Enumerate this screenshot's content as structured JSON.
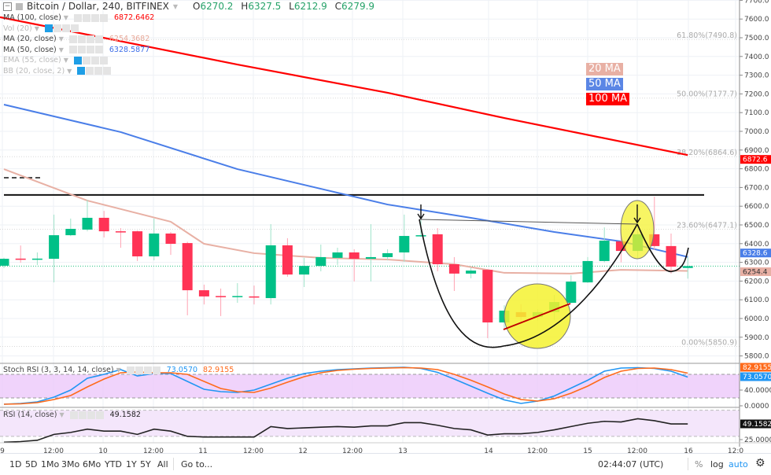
{
  "header": {
    "symbol_title": "Bitcoin / Dollar, 240, BITFINEX",
    "ohlc": {
      "o_label": "O",
      "o": "6270.2",
      "h_label": "H",
      "h": "6327.5",
      "l_label": "L",
      "l": "6212.9",
      "c_label": "C",
      "c": "6279.9"
    }
  },
  "indicators": [
    {
      "name": "MA (100, close)",
      "value": "6872.6462",
      "color": "#ff0000",
      "visible": true
    },
    {
      "name": "Vol (20)",
      "value": "",
      "color": "#bbbbbb",
      "visible": false
    },
    {
      "name": "MA (20, close)",
      "value": "6254.3682",
      "color": "#e8a898",
      "visible": true
    },
    {
      "name": "MA (50, close)",
      "value": "6328.5877",
      "color": "#3d6ee8",
      "visible": true
    },
    {
      "name": "EMA (55, close)",
      "value": "",
      "color": "#bbbbbb",
      "visible": false
    },
    {
      "name": "BB (20, close, 2)",
      "value": "",
      "color": "#bbbbbb",
      "visible": false
    }
  ],
  "annotations": {
    "ma20": {
      "text": "20 MA",
      "color": "#e8b0a4"
    },
    "ma50": {
      "text": "50 MA",
      "color": "#5b86e5"
    },
    "ma100": {
      "text": "100 MA",
      "color": "#ff0000"
    }
  },
  "stoch_legend": {
    "name": "Stoch RSI (3, 3, 14, 14, close)",
    "k": "73.0570",
    "d": "82.9155"
  },
  "rsi_legend": {
    "name": "RSI (14, close)",
    "value": "49.1582"
  },
  "toolbar": {
    "ranges": [
      "1D",
      "5D",
      "1Mo",
      "3Mo",
      "6Mo",
      "YTD",
      "1Y",
      "5Y",
      "All"
    ],
    "goto": "Go to...",
    "clock": "02:44:07 (UTC)",
    "percent": "%",
    "log": "log",
    "auto": "auto"
  },
  "colors": {
    "up": "#00c087",
    "down": "#ff3355",
    "ma100": "#ff0000",
    "ma50": "#4a7ee8",
    "ma20": "#e8b0a4",
    "stoch_k": "#2196f3",
    "stoch_d": "#ff6a1a",
    "rsi": "#222222"
  },
  "chart_data": {
    "type": "candlestick",
    "title": "Bitcoin / Dollar, 240, BITFINEX",
    "interval_minutes": 240,
    "ylim": [
      5750,
      7700
    ],
    "y_ticks": [
      "7700.0",
      "7600.0",
      "7500.0",
      "7400.0",
      "7300.0",
      "7200.0",
      "7100.0",
      "7000.0",
      "6900.0",
      "6800.0",
      "6700.0",
      "6600.0",
      "6500.0",
      "6400.0",
      "6300.0",
      "6200.0",
      "6100.0",
      "6000.0",
      "5900.0",
      "5800.0"
    ],
    "x_ticks": [
      "9",
      "12:00",
      "10",
      "12:00",
      "11",
      "12:00",
      "12",
      "12:00",
      "13",
      "14",
      "12:00",
      "15",
      "12:00",
      "16",
      "12:0"
    ],
    "candles": [
      [
        6282,
        6325,
        6270,
        6319
      ],
      [
        6320,
        6390,
        6298,
        6318
      ],
      [
        6317,
        6353,
        6286,
        6320
      ],
      [
        6319,
        6555,
        6193,
        6445
      ],
      [
        6445,
        6534,
        6440,
        6479
      ],
      [
        6475,
        6634,
        6466,
        6538
      ],
      [
        6538,
        6575,
        6433,
        6466
      ],
      [
        6466,
        6483,
        6378,
        6462
      ],
      [
        6466,
        6470,
        6307,
        6332
      ],
      [
        6332,
        6534,
        6311,
        6454
      ],
      [
        6454,
        6462,
        6340,
        6399
      ],
      [
        6403,
        6410,
        6017,
        6151
      ],
      [
        6151,
        6181,
        6075,
        6118
      ],
      [
        6120,
        6160,
        6013,
        6118
      ],
      [
        6116,
        6189,
        6084,
        6120
      ],
      [
        6118,
        6176,
        6075,
        6114
      ],
      [
        6109,
        6504,
        6075,
        6391
      ],
      [
        6391,
        6429,
        6223,
        6235
      ],
      [
        6235,
        6324,
        6168,
        6281
      ],
      [
        6281,
        6395,
        6252,
        6328
      ],
      [
        6324,
        6378,
        6286,
        6353
      ],
      [
        6353,
        6370,
        6198,
        6319
      ],
      [
        6319,
        6504,
        6198,
        6328
      ],
      [
        6328,
        6370,
        6310,
        6349
      ],
      [
        6353,
        6555,
        6303,
        6441
      ],
      [
        6441,
        6525,
        6435,
        6445
      ],
      [
        6450,
        6483,
        6252,
        6290
      ],
      [
        6290,
        6328,
        6147,
        6240
      ],
      [
        6240,
        6270,
        6215,
        6256
      ],
      [
        6260,
        6265,
        5895,
        5979
      ],
      [
        5979,
        6071,
        5950,
        6042
      ],
      [
        6034,
        6076,
        5970,
        6008
      ],
      [
        6008,
        6050,
        5990,
        6034
      ],
      [
        6034,
        6126,
        5992,
        6088
      ],
      [
        6084,
        6231,
        6080,
        6197
      ],
      [
        6193,
        6328,
        6190,
        6307
      ],
      [
        6307,
        6487,
        6300,
        6416
      ],
      [
        6412,
        6475,
        6300,
        6361
      ],
      [
        6361,
        6513,
        6324,
        6450
      ],
      [
        6450,
        6651,
        6366,
        6387
      ],
      [
        6387,
        6454,
        6240,
        6277
      ],
      [
        6270,
        6327,
        6213,
        6280
      ]
    ],
    "candle_fields": [
      "open",
      "high",
      "low",
      "close"
    ],
    "last_price": 6279.9,
    "ma_series": [
      {
        "name": "MA 100",
        "last": "6872.6",
        "points": [
          [
            0,
            7610
          ],
          [
            14,
            7357
          ],
          [
            23,
            7206
          ],
          [
            30,
            7071
          ],
          [
            41,
            6873
          ]
        ]
      },
      {
        "name": "MA 50",
        "last": "6328.6",
        "points": [
          [
            0,
            7143
          ],
          [
            7,
            6996
          ],
          [
            14,
            6798
          ],
          [
            20,
            6672
          ],
          [
            23,
            6609
          ],
          [
            28,
            6538
          ],
          [
            33,
            6462
          ],
          [
            37,
            6412
          ],
          [
            41,
            6329
          ]
        ]
      },
      {
        "name": "MA 20",
        "last": "6254.4",
        "points": [
          [
            0,
            6798
          ],
          [
            5,
            6630
          ],
          [
            10,
            6517
          ],
          [
            12,
            6399
          ],
          [
            15,
            6349
          ],
          [
            19,
            6324
          ],
          [
            23,
            6315
          ],
          [
            27,
            6290
          ],
          [
            30,
            6244
          ],
          [
            34,
            6240
          ],
          [
            37,
            6260
          ],
          [
            41,
            6254
          ]
        ]
      }
    ],
    "fib_levels": [
      {
        "label": "61.80%(7490.8)",
        "price": 7490.8
      },
      {
        "label": "50.00%(7177.7)",
        "price": 7177.7
      },
      {
        "label": "38.20%(6864.6)",
        "price": 6864.6
      },
      {
        "label": "23.60%(6477.1)",
        "price": 6477.1
      },
      {
        "label": "0.00%(5850.9)",
        "price": 5850.9
      }
    ],
    "resistance_price": 6660,
    "stoch_rsi": {
      "ylim": [
        0,
        100
      ],
      "band": [
        20,
        80
      ],
      "y_ticks": [
        "40.0000",
        "0.0000"
      ],
      "k": [
        4,
        6,
        10,
        22,
        40,
        70,
        80,
        92,
        76,
        82,
        82,
        62,
        42,
        36,
        34,
        40,
        55,
        70,
        82,
        88,
        92,
        94,
        96,
        97,
        98,
        95,
        85,
        68,
        50,
        32,
        15,
        6,
        12,
        25,
        45,
        65,
        88,
        96,
        97,
        95,
        88,
        73
      ],
      "d": [
        4,
        5,
        8,
        16,
        26,
        48,
        68,
        84,
        86,
        84,
        84,
        80,
        62,
        44,
        36,
        34,
        45,
        60,
        74,
        84,
        90,
        93,
        95,
        96,
        97,
        96,
        92,
        80,
        65,
        48,
        30,
        16,
        12,
        18,
        32,
        50,
        72,
        88,
        95,
        96,
        92,
        83
      ]
    },
    "rsi": {
      "ylim": [
        20,
        75
      ],
      "band": [
        30,
        70
      ],
      "y_ticks": [
        "25.0000"
      ],
      "values": [
        21,
        22,
        24,
        33,
        36,
        41,
        38,
        38,
        33,
        41,
        38,
        30,
        29,
        29,
        29,
        29,
        45,
        42,
        43,
        44,
        45,
        44,
        46,
        46,
        51,
        51,
        47,
        42,
        40,
        32,
        34,
        34,
        36,
        40,
        45,
        50,
        53,
        52,
        57,
        54,
        49,
        49
      ]
    }
  }
}
